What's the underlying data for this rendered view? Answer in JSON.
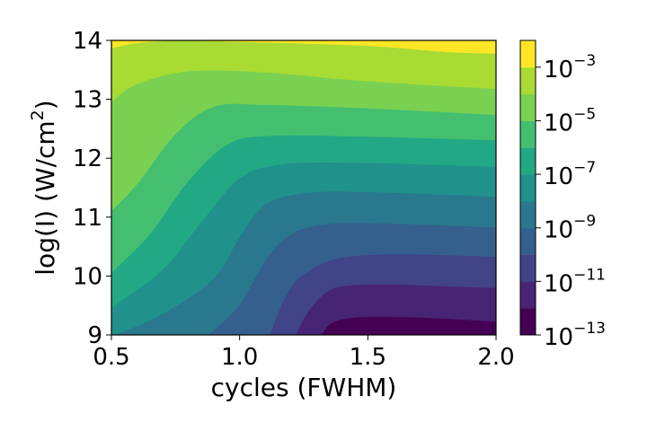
{
  "chart_data": {
    "type": "heatmap",
    "subtype": "filled-contour",
    "xlabel": "cycles (FWHM)",
    "ylabel_parts": {
      "base": "log(I) (W/cm",
      "sup": "2",
      "end": ")"
    },
    "xlim": [
      0.5,
      2.0
    ],
    "ylim": [
      9,
      14
    ],
    "x_ticks": [
      {
        "value": 0.5,
        "label": "0.5"
      },
      {
        "value": 1.0,
        "label": "1.0"
      },
      {
        "value": 1.5,
        "label": "1.5"
      },
      {
        "value": 2.0,
        "label": "2.0"
      }
    ],
    "y_ticks": [
      {
        "value": 9,
        "label": "9"
      },
      {
        "value": 10,
        "label": "10"
      },
      {
        "value": 11,
        "label": "11"
      },
      {
        "value": 12,
        "label": "12"
      },
      {
        "value": 13,
        "label": "13"
      },
      {
        "value": 14,
        "label": "14"
      }
    ],
    "colorbar": {
      "scale": "log",
      "range_exponents": [
        -13,
        -2
      ],
      "ticks": [
        {
          "base": "10",
          "exp": "−13",
          "value": -13
        },
        {
          "base": "10",
          "exp": "−11",
          "value": -11
        },
        {
          "base": "10",
          "exp": "−9",
          "value": -9
        },
        {
          "base": "10",
          "exp": "−7",
          "value": -7
        },
        {
          "base": "10",
          "exp": "−5",
          "value": -5
        },
        {
          "base": "10",
          "exp": "−3",
          "value": -3
        }
      ],
      "levels": [
        {
          "from": -13,
          "to": -12,
          "color": "#440154"
        },
        {
          "from": -12,
          "to": -11,
          "color": "#482475"
        },
        {
          "from": -11,
          "to": -10,
          "color": "#414487"
        },
        {
          "from": -10,
          "to": -9,
          "color": "#355f8d"
        },
        {
          "from": -9,
          "to": -8,
          "color": "#2a788e"
        },
        {
          "from": -8,
          "to": -7,
          "color": "#21918c"
        },
        {
          "from": -7,
          "to": -6,
          "color": "#22a884"
        },
        {
          "from": -6,
          "to": -5,
          "color": "#44bf70"
        },
        {
          "from": -5,
          "to": -4,
          "color": "#7ad151"
        },
        {
          "from": -4,
          "to": -3,
          "color": "#a8db34"
        },
        {
          "from": -3,
          "to": -2,
          "color": "#fde725"
        }
      ]
    },
    "contour_boundaries": [
      {
        "level": -12,
        "points": [
          [
            1.32,
            9.0
          ],
          [
            1.36,
            9.2
          ],
          [
            1.45,
            9.29
          ],
          [
            1.6,
            9.3
          ],
          [
            1.8,
            9.27
          ],
          [
            2.0,
            9.22
          ]
        ]
      },
      {
        "level": -11,
        "points": [
          [
            1.22,
            9.0
          ],
          [
            1.27,
            9.4
          ],
          [
            1.35,
            9.75
          ],
          [
            1.45,
            9.84
          ],
          [
            1.6,
            9.85
          ],
          [
            1.8,
            9.82
          ],
          [
            2.0,
            9.79
          ]
        ]
      },
      {
        "level": -10,
        "points": [
          [
            1.12,
            9.0
          ],
          [
            1.17,
            9.55
          ],
          [
            1.23,
            9.95
          ],
          [
            1.35,
            10.25
          ],
          [
            1.5,
            10.35
          ],
          [
            1.7,
            10.36
          ],
          [
            2.0,
            10.32
          ]
        ]
      },
      {
        "level": -9,
        "points": [
          [
            0.88,
            9.0
          ],
          [
            1.0,
            9.5
          ],
          [
            1.1,
            10.25
          ],
          [
            1.2,
            10.7
          ],
          [
            1.35,
            10.88
          ],
          [
            1.6,
            10.88
          ],
          [
            2.0,
            10.82
          ]
        ]
      },
      {
        "level": -8,
        "points": [
          [
            0.52,
            9.0
          ],
          [
            0.7,
            9.35
          ],
          [
            0.9,
            9.95
          ],
          [
            1.0,
            10.65
          ],
          [
            1.1,
            11.2
          ],
          [
            1.25,
            11.4
          ],
          [
            1.5,
            11.42
          ],
          [
            2.0,
            11.34
          ]
        ]
      },
      {
        "level": -7,
        "points": [
          [
            0.5,
            9.45
          ],
          [
            0.7,
            10.1
          ],
          [
            0.85,
            10.9
          ],
          [
            1.0,
            11.65
          ],
          [
            1.15,
            11.88
          ],
          [
            1.4,
            11.92
          ],
          [
            2.0,
            11.85
          ]
        ]
      },
      {
        "level": -6,
        "points": [
          [
            0.5,
            10.05
          ],
          [
            0.65,
            10.7
          ],
          [
            0.8,
            11.6
          ],
          [
            0.95,
            12.22
          ],
          [
            1.1,
            12.37
          ],
          [
            1.4,
            12.37
          ],
          [
            2.0,
            12.3
          ]
        ]
      },
      {
        "level": -5,
        "points": [
          [
            0.5,
            11.1
          ],
          [
            0.6,
            11.55
          ],
          [
            0.75,
            12.4
          ],
          [
            0.9,
            12.87
          ],
          [
            1.1,
            12.9
          ],
          [
            1.5,
            12.84
          ],
          [
            2.0,
            12.73
          ]
        ]
      },
      {
        "level": -4,
        "points": [
          [
            0.5,
            12.95
          ],
          [
            0.6,
            13.25
          ],
          [
            0.8,
            13.47
          ],
          [
            1.1,
            13.45
          ],
          [
            1.5,
            13.3
          ],
          [
            2.0,
            13.17
          ]
        ]
      },
      {
        "level": -3,
        "points": [
          [
            0.5,
            13.86
          ],
          [
            0.6,
            13.95
          ],
          [
            0.75,
            13.99
          ],
          [
            1.0,
            13.97
          ],
          [
            1.5,
            13.9
          ],
          [
            1.8,
            13.8
          ],
          [
            2.0,
            13.77
          ]
        ]
      }
    ]
  }
}
